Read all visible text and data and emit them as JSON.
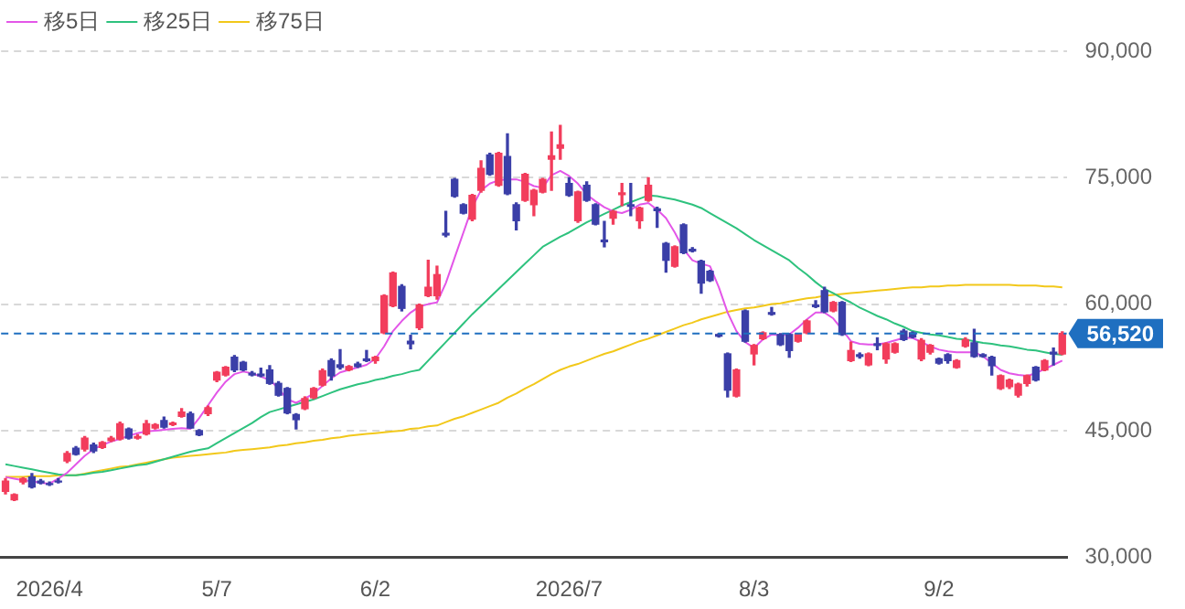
{
  "chart_data": {
    "type": "candlestick",
    "categories": [
      null,
      null,
      null,
      null,
      null,
      "2026/4",
      null,
      null,
      null,
      null,
      null,
      null,
      null,
      null,
      null,
      null,
      null,
      null,
      null,
      null,
      null,
      null,
      null,
      null,
      "5/7",
      null,
      null,
      null,
      null,
      null,
      null,
      null,
      null,
      null,
      null,
      null,
      null,
      null,
      null,
      null,
      null,
      null,
      "6/2",
      null,
      null,
      null,
      null,
      null,
      null,
      null,
      null,
      null,
      null,
      null,
      null,
      null,
      null,
      null,
      null,
      null,
      null,
      null,
      null,
      null,
      "2026/7",
      null,
      null,
      null,
      null,
      null,
      null,
      null,
      null,
      null,
      null,
      null,
      null,
      null,
      null,
      null,
      null,
      null,
      null,
      null,
      null,
      "8/3",
      null,
      null,
      null,
      null,
      null,
      null,
      null,
      null,
      null,
      null,
      null,
      null,
      null,
      null,
      null,
      null,
      null,
      null,
      null,
      null,
      "9/2",
      null,
      null,
      null,
      null,
      null,
      null,
      null,
      null,
      null,
      null,
      null,
      null,
      null,
      null
    ],
    "ohlc": [
      [
        37800,
        39300,
        37500,
        39000
      ],
      [
        36800,
        37500,
        36700,
        37400
      ],
      [
        38900,
        39400,
        38700,
        39300
      ],
      [
        39500,
        39900,
        38200,
        38300
      ],
      [
        39000,
        39200,
        38700,
        38800
      ],
      [
        38700,
        38900,
        38500,
        38600
      ],
      [
        39000,
        39300,
        38800,
        38900
      ],
      [
        41400,
        42500,
        41200,
        42300
      ],
      [
        42900,
        43100,
        42100,
        42200
      ],
      [
        42800,
        44300,
        42600,
        44100
      ],
      [
        43300,
        43500,
        42400,
        42600
      ],
      [
        43000,
        43700,
        42900,
        43600
      ],
      [
        43800,
        44300,
        43700,
        44100
      ],
      [
        44000,
        46000,
        43900,
        45800
      ],
      [
        45200,
        45300,
        44000,
        44100
      ],
      [
        44100,
        44500,
        44000,
        44300
      ],
      [
        44600,
        46200,
        44500,
        45800
      ],
      [
        45300,
        45800,
        45200,
        45700
      ],
      [
        46200,
        46600,
        45300,
        45400
      ],
      [
        45700,
        46000,
        45600,
        45900
      ],
      [
        46700,
        47600,
        46600,
        47200
      ],
      [
        47000,
        47200,
        45300,
        45300
      ],
      [
        45000,
        45100,
        44400,
        44500
      ],
      [
        47000,
        47900,
        46800,
        47700
      ],
      [
        51000,
        52000,
        50800,
        51900
      ],
      [
        51600,
        52600,
        51500,
        52500
      ],
      [
        53700,
        53900,
        52000,
        52200
      ],
      [
        53100,
        53200,
        52100,
        52200
      ],
      [
        51800,
        52000,
        51500,
        51600
      ],
      [
        51700,
        52400,
        51400,
        51500
      ],
      [
        52200,
        52700,
        50500,
        50600
      ],
      [
        50600,
        50800,
        49100,
        49200
      ],
      [
        50000,
        50100,
        47000,
        47100
      ],
      [
        46900,
        47000,
        45200,
        46300
      ],
      [
        47600,
        49000,
        47500,
        48800
      ],
      [
        48900,
        50100,
        48800,
        50000
      ],
      [
        50400,
        52300,
        50300,
        52100
      ],
      [
        53300,
        53500,
        51000,
        51500
      ],
      [
        52800,
        54600,
        52300,
        52500
      ],
      [
        52200,
        52700,
        52100,
        52600
      ],
      [
        52900,
        53100,
        52500,
        52600
      ],
      [
        53500,
        54500,
        53200,
        53300
      ],
      [
        53300,
        53800,
        53000,
        53700
      ],
      [
        56600,
        61100,
        56500,
        61000
      ],
      [
        59800,
        63800,
        59700,
        63700
      ],
      [
        62100,
        62300,
        59200,
        59500
      ],
      [
        55600,
        56300,
        54700,
        55300
      ],
      [
        57200,
        60000,
        57000,
        59900
      ],
      [
        61000,
        65200,
        60900,
        62000
      ],
      [
        61000,
        64500,
        60600,
        63500
      ],
      [
        68400,
        71000,
        68000,
        68200
      ],
      [
        74800,
        74900,
        72700,
        72800
      ],
      [
        71800,
        71900,
        70700,
        70800
      ],
      [
        70100,
        73000,
        69900,
        72900
      ],
      [
        73500,
        77000,
        73300,
        76100
      ],
      [
        77700,
        77900,
        75300,
        75400
      ],
      [
        74100,
        78000,
        74000,
        77900
      ],
      [
        77500,
        80200,
        73000,
        73100
      ],
      [
        71800,
        72000,
        68800,
        69900
      ],
      [
        72300,
        75500,
        72200,
        75400
      ],
      [
        71800,
        73600,
        70500,
        73500
      ],
      [
        73300,
        74900,
        73200,
        74800
      ],
      [
        77200,
        80400,
        73500,
        77600
      ],
      [
        78500,
        81200,
        77200,
        78900
      ],
      [
        74300,
        75000,
        72800,
        72900
      ],
      [
        69900,
        73400,
        69700,
        73300
      ],
      [
        74100,
        74500,
        72200,
        72300
      ],
      [
        71800,
        71900,
        69400,
        69500
      ],
      [
        67600,
        69800,
        66800,
        67400
      ],
      [
        70200,
        71100,
        69500,
        71000
      ],
      [
        73000,
        74300,
        71700,
        73200
      ],
      [
        71800,
        74300,
        70500,
        71600
      ],
      [
        69900,
        71500,
        69000,
        71400
      ],
      [
        72300,
        75000,
        72200,
        74100
      ],
      [
        71300,
        71500,
        69100,
        71100
      ],
      [
        67200,
        67300,
        63800,
        65200
      ],
      [
        64500,
        66900,
        64400,
        66800
      ],
      [
        69400,
        69500,
        66000,
        66100
      ],
      [
        66500,
        66700,
        66200,
        66300
      ],
      [
        65100,
        65200,
        61300,
        62500
      ],
      [
        63900,
        64000,
        62700,
        62800
      ],
      [
        56400,
        56500,
        56100,
        56200
      ],
      [
        54100,
        54200,
        49000,
        49800
      ],
      [
        49100,
        52300,
        49000,
        52200
      ],
      [
        59200,
        59300,
        55500,
        55600
      ],
      [
        54100,
        55200,
        52800,
        55100
      ],
      [
        55900,
        56700,
        55800,
        56600
      ],
      [
        59000,
        59600,
        58700,
        58800
      ],
      [
        56400,
        56500,
        55100,
        55200
      ],
      [
        56400,
        56500,
        53700,
        54500
      ],
      [
        55600,
        56500,
        55500,
        56400
      ],
      [
        56600,
        58100,
        56500,
        58000
      ],
      [
        59900,
        60400,
        59600,
        59700
      ],
      [
        61600,
        62000,
        59000,
        59100
      ],
      [
        59200,
        60300,
        59100,
        60200
      ],
      [
        60200,
        60300,
        56300,
        56400
      ],
      [
        53300,
        55500,
        53200,
        54500
      ],
      [
        54000,
        54200,
        53600,
        53800
      ],
      [
        52800,
        54200,
        52700,
        54100
      ],
      [
        55300,
        56000,
        54600,
        55100
      ],
      [
        53500,
        55400,
        53000,
        55300
      ],
      [
        54300,
        55400,
        54200,
        55300
      ],
      [
        56800,
        57000,
        55700,
        55800
      ],
      [
        56600,
        56700,
        56000,
        56100
      ],
      [
        53500,
        55900,
        53300,
        55700
      ],
      [
        54300,
        55200,
        54100,
        55100
      ],
      [
        53500,
        53600,
        52900,
        53000
      ],
      [
        54000,
        54100,
        53000,
        53300
      ],
      [
        52500,
        53400,
        52400,
        53300
      ],
      [
        55000,
        56000,
        54900,
        55800
      ],
      [
        55400,
        57000,
        53700,
        53800
      ],
      [
        54000,
        54100,
        53700,
        53800
      ],
      [
        53700,
        53800,
        51600,
        52700
      ],
      [
        50000,
        51600,
        49900,
        51500
      ],
      [
        50200,
        51100,
        50000,
        51000
      ],
      [
        49200,
        50600,
        49000,
        50500
      ],
      [
        50600,
        51600,
        50300,
        51500
      ],
      [
        52500,
        52600,
        50900,
        51000
      ],
      [
        52200,
        53400,
        52100,
        53300
      ],
      [
        54300,
        54800,
        52800,
        54100
      ],
      [
        54100,
        56700,
        54000,
        56520
      ]
    ],
    "colors": [
      "#f23d5c",
      "#f23d5c",
      "#f23d5c",
      "#3b3fa8",
      "#3b3fa8",
      "#3b3fa8",
      "#3b3fa8",
      "#f23d5c",
      "#3b3fa8",
      "#f23d5c",
      "#3b3fa8",
      "#f23d5c",
      "#f23d5c",
      "#f23d5c",
      "#3b3fa8",
      "#f23d5c",
      "#f23d5c",
      "#f23d5c",
      "#3b3fa8",
      "#f23d5c",
      "#f23d5c",
      "#3b3fa8",
      "#3b3fa8",
      "#f23d5c",
      "#f23d5c",
      "#f23d5c",
      "#3b3fa8",
      "#3b3fa8",
      "#3b3fa8",
      "#3b3fa8",
      "#3b3fa8",
      "#3b3fa8",
      "#3b3fa8",
      "#3b3fa8",
      "#f23d5c",
      "#f23d5c",
      "#f23d5c",
      "#3b3fa8",
      "#3b3fa8",
      "#f23d5c",
      "#3b3fa8",
      "#3b3fa8",
      "#f23d5c",
      "#f23d5c",
      "#f23d5c",
      "#3b3fa8",
      "#3b3fa8",
      "#f23d5c",
      "#f23d5c",
      "#f23d5c",
      "#3b3fa8",
      "#3b3fa8",
      "#3b3fa8",
      "#f23d5c",
      "#f23d5c",
      "#3b3fa8",
      "#f23d5c",
      "#3b3fa8",
      "#3b3fa8",
      "#f23d5c",
      "#f23d5c",
      "#f23d5c",
      "#f23d5c",
      "#f23d5c",
      "#3b3fa8",
      "#f23d5c",
      "#3b3fa8",
      "#3b3fa8",
      "#3b3fa8",
      "#f23d5c",
      "#f23d5c",
      "#3b3fa8",
      "#f23d5c",
      "#f23d5c",
      "#3b3fa8",
      "#3b3fa8",
      "#f23d5c",
      "#3b3fa8",
      "#3b3fa8",
      "#3b3fa8",
      "#3b3fa8",
      "#3b3fa8",
      "#3b3fa8",
      "#f23d5c",
      "#3b3fa8",
      "#f23d5c",
      "#f23d5c",
      "#3b3fa8",
      "#3b3fa8",
      "#3b3fa8",
      "#f23d5c",
      "#f23d5c",
      "#3b3fa8",
      "#3b3fa8",
      "#f23d5c",
      "#3b3fa8",
      "#f23d5c",
      "#3b3fa8",
      "#f23d5c",
      "#3b3fa8",
      "#f23d5c",
      "#f23d5c",
      "#3b3fa8",
      "#3b3fa8",
      "#f23d5c",
      "#f23d5c",
      "#3b3fa8",
      "#3b3fa8",
      "#f23d5c",
      "#f23d5c",
      "#3b3fa8",
      "#3b3fa8",
      "#3b3fa8",
      "#f23d5c",
      "#f23d5c",
      "#f23d5c",
      "#f23d5c",
      "#3b3fa8",
      "#f23d5c",
      "#3b3fa8",
      "#f23d5c"
    ],
    "series": [
      {
        "name": "移5日",
        "type": "line",
        "color": "#e356e8",
        "values": [
          39500,
          39300,
          39100,
          39000,
          38800,
          38700,
          39300,
          40000,
          41000,
          42000,
          42800,
          43300,
          43700,
          44000,
          44400,
          44700,
          44900,
          45000,
          45100,
          45200,
          45300,
          45200,
          46500,
          48000,
          49500,
          50800,
          51700,
          52000,
          51800,
          51400,
          51000,
          50000,
          48700,
          48300,
          48800,
          49400,
          50300,
          51200,
          51900,
          52200,
          52500,
          52800,
          53500,
          55000,
          56800,
          58000,
          59000,
          59700,
          60000,
          60200,
          62500,
          65500,
          68500,
          71500,
          73500,
          74300,
          74700,
          74800,
          74800,
          74500,
          74000,
          73800,
          75300,
          75800,
          75200,
          74300,
          73000,
          72200,
          71500,
          71000,
          70800,
          71200,
          71800,
          72000,
          71200,
          70200,
          68500,
          66500,
          65200,
          64800,
          64500,
          62000,
          59000,
          56800,
          55500,
          54800,
          55800,
          56400,
          56300,
          56400,
          57200,
          58200,
          59000,
          59000,
          58300,
          57000,
          55600,
          55300,
          55200,
          55200,
          55400,
          55700,
          56000,
          56000,
          55500,
          55000,
          54600,
          54400,
          54300,
          54300,
          54300,
          53800,
          53000,
          52200,
          51800,
          51600,
          51500,
          51800,
          52300,
          52800,
          53300
        ]
      },
      {
        "name": "移25日",
        "type": "line",
        "color": "#2ec27e",
        "values": [
          41000,
          40800,
          40600,
          40400,
          40200,
          40000,
          39800,
          39700,
          39700,
          39800,
          40000,
          40100,
          40300,
          40500,
          40700,
          40900,
          41000,
          41300,
          41600,
          41900,
          42200,
          42500,
          42700,
          42900,
          43500,
          44100,
          44700,
          45300,
          45900,
          46600,
          47200,
          47500,
          47800,
          48100,
          48400,
          48700,
          49100,
          49500,
          49900,
          50200,
          50500,
          50700,
          51000,
          51200,
          51500,
          51700,
          52000,
          52200,
          53300,
          54400,
          55500,
          56600,
          57700,
          58800,
          59800,
          60800,
          61800,
          62800,
          63800,
          64800,
          65800,
          66800,
          67400,
          68000,
          68500,
          69100,
          69700,
          70200,
          70700,
          71200,
          71700,
          72100,
          72500,
          72900,
          72800,
          72600,
          72400,
          72100,
          71800,
          71400,
          70800,
          70200,
          69600,
          69000,
          68300,
          67600,
          67000,
          66400,
          65800,
          65200,
          64300,
          63500,
          62600,
          61800,
          61300,
          60700,
          60200,
          59600,
          59100,
          58600,
          58200,
          57700,
          57300,
          56800,
          56600,
          56400,
          56300,
          56100,
          55900,
          55800,
          55600,
          55400,
          55300,
          55100,
          55000,
          54800,
          54600,
          54500,
          54300,
          54100,
          54000
        ]
      },
      {
        "name": "移75日",
        "type": "line",
        "color": "#f2c81a",
        "values": [
          39500,
          39500,
          39500,
          39600,
          39600,
          39600,
          39700,
          39700,
          39700,
          39900,
          40100,
          40300,
          40500,
          40700,
          40800,
          41000,
          41200,
          41400,
          41600,
          41800,
          41900,
          42000,
          42100,
          42200,
          42300,
          42400,
          42600,
          42700,
          42800,
          42900,
          43000,
          43200,
          43300,
          43500,
          43600,
          43800,
          43900,
          44100,
          44200,
          44400,
          44500,
          44600,
          44700,
          44800,
          44900,
          45000,
          45200,
          45300,
          45500,
          45600,
          46000,
          46400,
          46700,
          47100,
          47500,
          47900,
          48300,
          48900,
          49400,
          50000,
          50500,
          51100,
          51700,
          52200,
          52600,
          52900,
          53300,
          53700,
          54100,
          54400,
          54800,
          55200,
          55600,
          55900,
          56300,
          56700,
          57100,
          57500,
          57800,
          58200,
          58500,
          58800,
          59100,
          59300,
          59500,
          59600,
          59800,
          60000,
          60100,
          60300,
          60500,
          60700,
          60800,
          61000,
          61100,
          61200,
          61300,
          61400,
          61500,
          61600,
          61700,
          61800,
          61900,
          62000,
          62000,
          62100,
          62100,
          62200,
          62200,
          62300,
          62300,
          62300,
          62300,
          62300,
          62300,
          62200,
          62200,
          62200,
          62100,
          62100,
          62000
        ]
      }
    ],
    "ylim": [
      30000,
      90000
    ],
    "yticks": [
      {
        "value": 30000,
        "label": "30,000"
      },
      {
        "value": 45000,
        "label": "45,000"
      },
      {
        "value": 60000,
        "label": "60,000"
      },
      {
        "value": 75000,
        "label": "75,000"
      },
      {
        "value": 90000,
        "label": "90,000"
      }
    ],
    "grid": "y",
    "legend": "top left",
    "ref_lines": [
      {
        "axis": "y",
        "value": 56520,
        "label": "56,520",
        "color": "#1f6fc0",
        "line_style": "dashed"
      }
    ]
  }
}
